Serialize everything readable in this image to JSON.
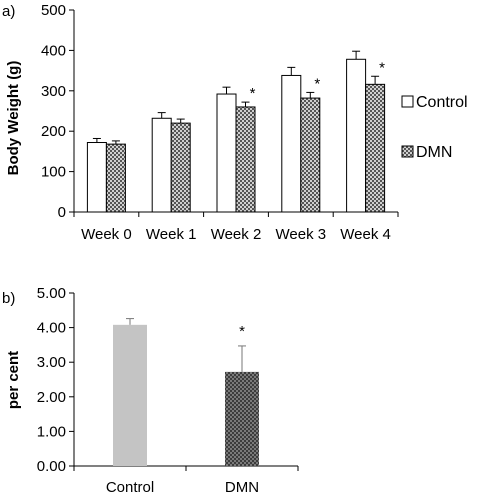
{
  "chart_data": [
    {
      "type": "bar",
      "panel_label": "a)",
      "ylabel": "Body Weight (g)",
      "xlabel": "",
      "categories": [
        "Week 0",
        "Week 1",
        "Week 2",
        "Week 3",
        "Week 4"
      ],
      "ylim": [
        0,
        500
      ],
      "yticks": [
        "0",
        "100",
        "200",
        "300",
        "400",
        "500"
      ],
      "legend_position": "right",
      "series": [
        {
          "name": "Control",
          "values": [
            172,
            232,
            292,
            338,
            378
          ],
          "errors": [
            10,
            14,
            17,
            20,
            20
          ],
          "color": "#ffffff",
          "pattern": "none"
        },
        {
          "name": "DMN",
          "values": [
            168,
            220,
            260,
            282,
            316
          ],
          "errors": [
            8,
            10,
            12,
            14,
            20
          ],
          "color": "#9a9a9a",
          "pattern": "checker"
        }
      ],
      "significance": [
        {
          "category": "Week 2",
          "series": "DMN",
          "marker": "*"
        },
        {
          "category": "Week 3",
          "series": "DMN",
          "marker": "*"
        },
        {
          "category": "Week 4",
          "series": "DMN",
          "marker": "*"
        }
      ],
      "grid": false
    },
    {
      "type": "bar",
      "panel_label": "b)",
      "ylabel": "per cent",
      "xlabel": "",
      "categories": [
        "Control",
        "DMN"
      ],
      "ylim": [
        0,
        5
      ],
      "yticks": [
        "0.00",
        "1.00",
        "2.00",
        "3.00",
        "4.00",
        "5.00"
      ],
      "values": [
        4.08,
        2.72
      ],
      "errors": [
        0.18,
        0.75
      ],
      "colors": [
        "#c4c4c4",
        "#5a5a5a"
      ],
      "significance": [
        {
          "category": "DMN",
          "marker": "*"
        }
      ],
      "grid": false
    }
  ]
}
